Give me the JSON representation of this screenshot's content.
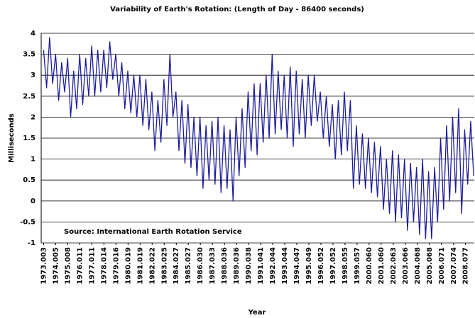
{
  "chart_data": {
    "type": "line",
    "title": "Variability of Earth's Rotation: (Length of Day - 86400 seconds)",
    "y_label": "Milliseconds",
    "x_label": "Year",
    "annotation": "Source: International Earth Rotation Service",
    "color": "#1c1c9c",
    "grid": true,
    "xlim": [
      1972.8,
      2008.8
    ],
    "xticks": [
      1973.003,
      1974.005,
      1975.008,
      1976.011,
      1977.011,
      1978.014,
      1979.016,
      1980.019,
      1981.019,
      1982.022,
      1983.025,
      1984.027,
      1985.027,
      1986.03,
      1987.033,
      1988.036,
      1989.036,
      1990.038,
      1991.041,
      1992.044,
      1993.044,
      1994.047,
      1995.049,
      1996.052,
      1997.052,
      1998.055,
      1999.057,
      2000.06,
      2001.06,
      2002.063,
      2003.066,
      2004.068,
      2005.068,
      2006.071,
      2007.074,
      2008.077
    ],
    "xtick_labels": [
      "1973.003",
      "1974.005",
      "1975.008",
      "1976.011",
      "1977.011",
      "1978.014",
      "1979.016",
      "1980.019",
      "1981.019",
      "1982.022",
      "1983.025",
      "1984.027",
      "1985.027",
      "1986.030",
      "1987.033",
      "1988.036",
      "1989.036",
      "1990.038",
      "1991.041",
      "1992.044",
      "1993.044",
      "1994.047",
      "1995.049",
      "1996.052",
      "1997.052",
      "1998.055",
      "1999.057",
      "2000.060",
      "2001.060",
      "2002.063",
      "2003.066",
      "2004.068",
      "2005.068",
      "2006.071",
      "2007.074",
      "2008.077"
    ],
    "ylim": [
      -1,
      4
    ],
    "yticks": [
      -1,
      -0.5,
      0,
      0.5,
      1,
      1.5,
      2,
      2.5,
      3,
      3.5,
      4
    ],
    "x": [
      1973,
      1973.25,
      1973.5,
      1973.75,
      1974,
      1974.25,
      1974.5,
      1974.75,
      1975,
      1975.25,
      1975.5,
      1975.75,
      1976,
      1976.25,
      1976.5,
      1976.75,
      1977,
      1977.25,
      1977.5,
      1977.75,
      1978,
      1978.25,
      1978.5,
      1978.75,
      1979,
      1979.25,
      1979.5,
      1979.75,
      1980,
      1980.25,
      1980.5,
      1980.75,
      1981,
      1981.25,
      1981.5,
      1981.75,
      1982,
      1982.25,
      1982.5,
      1982.75,
      1983,
      1983.25,
      1983.5,
      1983.75,
      1984,
      1984.25,
      1984.5,
      1984.75,
      1985,
      1985.25,
      1985.5,
      1985.75,
      1986,
      1986.25,
      1986.5,
      1986.75,
      1987,
      1987.25,
      1987.5,
      1987.75,
      1988,
      1988.25,
      1988.5,
      1988.75,
      1989,
      1989.25,
      1989.5,
      1989.75,
      1990,
      1990.25,
      1990.5,
      1990.75,
      1991,
      1991.25,
      1991.5,
      1991.75,
      1992,
      1992.25,
      1992.5,
      1992.75,
      1993,
      1993.25,
      1993.5,
      1993.75,
      1994,
      1994.25,
      1994.5,
      1994.75,
      1995,
      1995.25,
      1995.5,
      1995.75,
      1996,
      1996.25,
      1996.5,
      1996.75,
      1997,
      1997.25,
      1997.5,
      1997.75,
      1998,
      1998.25,
      1998.5,
      1998.75,
      1999,
      1999.25,
      1999.5,
      1999.75,
      2000,
      2000.25,
      2000.5,
      2000.75,
      2001,
      2001.25,
      2001.5,
      2001.75,
      2002,
      2002.25,
      2002.5,
      2002.75,
      2003,
      2003.25,
      2003.5,
      2003.75,
      2004,
      2004.25,
      2004.5,
      2004.75,
      2005,
      2005.25,
      2005.5,
      2005.75,
      2006,
      2006.25,
      2006.5,
      2006.75,
      2007,
      2007.25,
      2007.5,
      2007.75,
      2008,
      2008.25,
      2008.5,
      2008.75
    ],
    "values": [
      3.6,
      2.7,
      3.9,
      2.8,
      3.5,
      2.4,
      3.3,
      2.6,
      3.4,
      2.0,
      3.1,
      2.2,
      3.5,
      2.3,
      3.4,
      2.5,
      3.7,
      2.5,
      3.6,
      2.6,
      3.6,
      2.7,
      3.8,
      2.9,
      3.5,
      2.5,
      3.3,
      2.2,
      3.1,
      2.1,
      3.0,
      2.0,
      3.0,
      1.8,
      2.9,
      1.7,
      2.6,
      1.2,
      2.4,
      1.4,
      2.9,
      1.8,
      3.5,
      2.0,
      2.6,
      1.2,
      2.4,
      0.9,
      2.3,
      0.8,
      2.0,
      0.6,
      2.0,
      0.3,
      1.8,
      0.5,
      1.9,
      0.4,
      2.0,
      0.2,
      1.8,
      0.3,
      1.7,
      0.0,
      2.0,
      0.6,
      2.2,
      0.8,
      2.6,
      1.2,
      2.8,
      1.1,
      2.8,
      1.4,
      3.0,
      1.5,
      3.5,
      1.6,
      3.1,
      1.7,
      3.0,
      1.5,
      3.2,
      1.3,
      3.1,
      1.6,
      2.9,
      1.5,
      3.0,
      1.8,
      3.0,
      1.9,
      2.6,
      1.5,
      2.5,
      1.3,
      2.3,
      1.0,
      2.4,
      1.1,
      2.6,
      1.2,
      2.4,
      0.3,
      1.8,
      0.4,
      1.6,
      0.3,
      1.5,
      0.2,
      1.4,
      0.1,
      1.3,
      -0.2,
      1.0,
      -0.3,
      1.2,
      -0.5,
      1.1,
      -0.4,
      1.0,
      -0.7,
      0.9,
      -0.5,
      0.8,
      -0.8,
      1.0,
      -0.9,
      0.7,
      -0.9,
      0.8,
      -0.5,
      1.5,
      -0.2,
      1.8,
      0.0,
      2.0,
      0.2,
      2.2,
      -0.3,
      1.7,
      0.4,
      1.9,
      0.6
    ]
  }
}
